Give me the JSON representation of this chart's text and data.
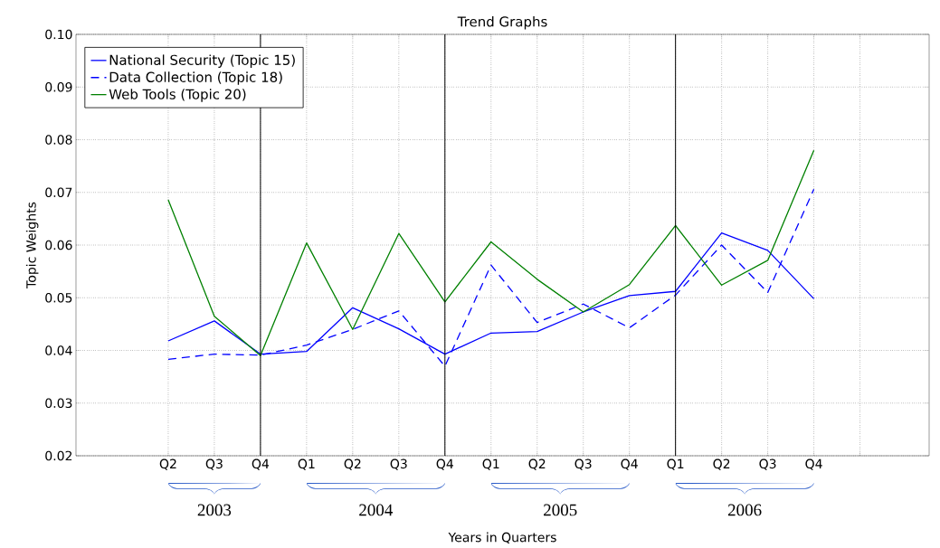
{
  "chart_data": {
    "type": "line",
    "title": "Trend Graphs",
    "xlabel": "Years in Quarters",
    "ylabel": "Topic Weights",
    "categories": [
      "Q2",
      "Q3",
      "Q4",
      "Q1",
      "Q2",
      "Q3",
      "Q4",
      "Q1",
      "Q2",
      "Q3",
      "Q4",
      "Q1",
      "Q2",
      "Q3",
      "Q4",
      null
    ],
    "series": [
      {
        "name": "National Security (Topic 15)",
        "color": "#0000ff",
        "line_style": "solid",
        "values": [
          0.0418,
          0.0456,
          0.0393,
          0.0398,
          0.0481,
          0.0441,
          0.0393,
          0.0433,
          0.0436,
          0.0473,
          0.0504,
          0.0512,
          0.0623,
          0.059,
          0.0498,
          null
        ]
      },
      {
        "name": "Data Collection (Topic 18)",
        "color": "#0000ff",
        "line_style": "dashed",
        "values": [
          0.0383,
          0.0393,
          0.0391,
          0.041,
          0.044,
          0.0475,
          0.037,
          0.0562,
          0.0453,
          0.0488,
          0.0443,
          0.0505,
          0.06,
          0.051,
          0.0706,
          null
        ]
      },
      {
        "name": "Web Tools (Topic 20)",
        "color": "#008000",
        "line_style": "solid",
        "values": [
          0.0686,
          0.0465,
          0.039,
          0.0604,
          0.044,
          0.0622,
          0.0492,
          0.0606,
          0.0535,
          0.0473,
          0.0525,
          0.0637,
          0.0524,
          0.0571,
          0.078,
          null
        ]
      }
    ],
    "ylim": [
      0.02,
      0.1
    ],
    "yticks": [
      0.02,
      0.03,
      0.04,
      0.05,
      0.06,
      0.07,
      0.08,
      0.09,
      {
        "value": 0.1,
        "label": "0.10"
      }
    ],
    "annotations": [
      "2003",
      "2004",
      "2005",
      "2006"
    ],
    "grid": true,
    "legend": "top left"
  }
}
